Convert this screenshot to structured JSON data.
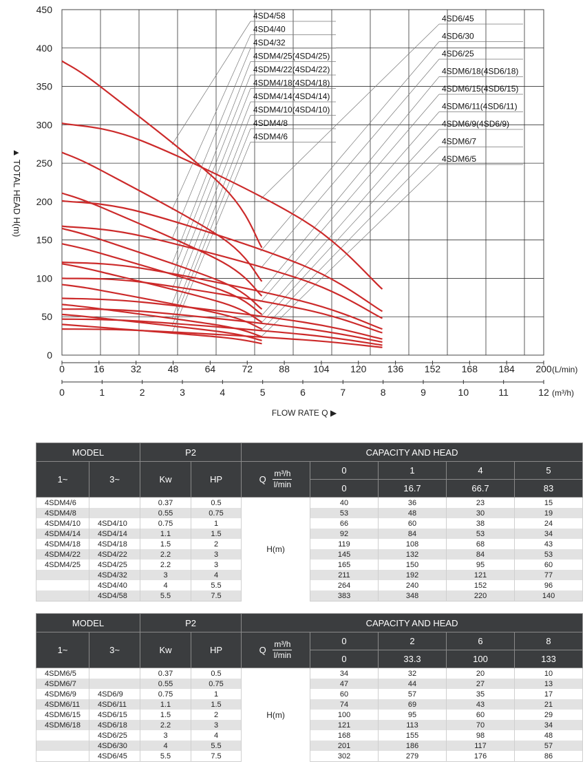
{
  "chart_data": {
    "type": "line",
    "ylabel": "▲ TOTAL HEAD H(m)",
    "xlabel": "FLOW RATE Q ▶",
    "x_unit_top": "(L/min)",
    "x_unit_bottom": "(m³/h)",
    "ylim": [
      0,
      450
    ],
    "xlim_lmin": [
      0,
      200
    ],
    "y_ticks": [
      0,
      50,
      100,
      150,
      200,
      250,
      300,
      350,
      400,
      450
    ],
    "x_ticks_lmin": [
      0,
      16,
      32,
      48,
      64,
      72,
      88,
      104,
      120,
      136,
      152,
      168,
      184,
      200
    ],
    "x_ticks_m3h": [
      0,
      1,
      2,
      3,
      4,
      5,
      6,
      7,
      8,
      9,
      10,
      11,
      12
    ],
    "grid": true,
    "line_color": "#cc2a2a",
    "series": [
      {
        "name": "4SDM4/6",
        "x": [
          0,
          16.7,
          66.7,
          83
        ],
        "y": [
          40,
          36,
          23,
          15
        ]
      },
      {
        "name": "4SDM4/8",
        "x": [
          0,
          16.7,
          66.7,
          83
        ],
        "y": [
          53,
          48,
          30,
          19
        ]
      },
      {
        "name": "4SDM4/10(4SD4/10)",
        "x": [
          0,
          16.7,
          66.7,
          83
        ],
        "y": [
          66,
          60,
          38,
          24
        ]
      },
      {
        "name": "4SDM4/14(4SD4/14)",
        "x": [
          0,
          16.7,
          66.7,
          83
        ],
        "y": [
          92,
          84,
          53,
          34
        ]
      },
      {
        "name": "4SDM4/18(4SD4/18)",
        "x": [
          0,
          16.7,
          66.7,
          83
        ],
        "y": [
          119,
          108,
          68,
          43
        ]
      },
      {
        "name": "4SDM4/22(4SD4/22)",
        "x": [
          0,
          16.7,
          66.7,
          83
        ],
        "y": [
          145,
          132,
          84,
          53
        ]
      },
      {
        "name": "4SDM4/25(4SD4/25)",
        "x": [
          0,
          16.7,
          66.7,
          83
        ],
        "y": [
          165,
          150,
          95,
          60
        ]
      },
      {
        "name": "4SD4/32",
        "x": [
          0,
          16.7,
          66.7,
          83
        ],
        "y": [
          211,
          192,
          121,
          77
        ]
      },
      {
        "name": "4SD4/40",
        "x": [
          0,
          16.7,
          66.7,
          83
        ],
        "y": [
          264,
          240,
          152,
          96
        ]
      },
      {
        "name": "4SD4/58",
        "x": [
          0,
          16.7,
          66.7,
          83
        ],
        "y": [
          383,
          348,
          220,
          140
        ]
      },
      {
        "name": "4SDM6/5",
        "x": [
          0,
          33.3,
          100,
          133
        ],
        "y": [
          34,
          32,
          20,
          10
        ]
      },
      {
        "name": "4SDM6/7",
        "x": [
          0,
          33.3,
          100,
          133
        ],
        "y": [
          47,
          44,
          27,
          13
        ]
      },
      {
        "name": "4SDM6/9(4SD6/9)",
        "x": [
          0,
          33.3,
          100,
          133
        ],
        "y": [
          60,
          57,
          35,
          17
        ]
      },
      {
        "name": "4SDM6/11(4SD6/11)",
        "x": [
          0,
          33.3,
          100,
          133
        ],
        "y": [
          74,
          69,
          43,
          21
        ]
      },
      {
        "name": "4SDM6/15(4SD6/15)",
        "x": [
          0,
          33.3,
          100,
          133
        ],
        "y": [
          100,
          95,
          60,
          29
        ]
      },
      {
        "name": "4SDM6/18(4SD6/18)",
        "x": [
          0,
          33.3,
          100,
          133
        ],
        "y": [
          121,
          113,
          70,
          34
        ]
      },
      {
        "name": "4SD6/25",
        "x": [
          0,
          33.3,
          100,
          133
        ],
        "y": [
          168,
          155,
          98,
          48
        ]
      },
      {
        "name": "4SD6/30",
        "x": [
          0,
          33.3,
          100,
          133
        ],
        "y": [
          201,
          186,
          117,
          57
        ]
      },
      {
        "name": "4SD6/45",
        "x": [
          0,
          33.3,
          100,
          133
        ],
        "y": [
          302,
          279,
          176,
          86
        ]
      }
    ]
  },
  "tables": [
    {
      "h_model": "MODEL",
      "h_p2": "P2",
      "h_cap": "CAPACITY AND HEAD",
      "h_1ph": "1~",
      "h_3ph": "3~",
      "h_kw": "Kw",
      "h_hp": "HP",
      "h_q": "Q",
      "h_unit_m3h": "m³/h",
      "h_unit_lmin": "l/min",
      "h_hm": "H(m)",
      "q_m3h": [
        "0",
        "1",
        "4",
        "5"
      ],
      "q_lmin": [
        "0",
        "16.7",
        "66.7",
        "83"
      ],
      "rows": [
        {
          "m1": "4SDM4/6",
          "m3": "",
          "kw": "0.37",
          "hp": "0.5",
          "h": [
            "40",
            "36",
            "23",
            "15"
          ]
        },
        {
          "m1": "4SDM4/8",
          "m3": "",
          "kw": "0.55",
          "hp": "0.75",
          "h": [
            "53",
            "48",
            "30",
            "19"
          ]
        },
        {
          "m1": "4SDM4/10",
          "m3": "4SD4/10",
          "kw": "0.75",
          "hp": "1",
          "h": [
            "66",
            "60",
            "38",
            "24"
          ]
        },
        {
          "m1": "4SDM4/14",
          "m3": "4SD4/14",
          "kw": "1.1",
          "hp": "1.5",
          "h": [
            "92",
            "84",
            "53",
            "34"
          ]
        },
        {
          "m1": "4SDM4/18",
          "m3": "4SD4/18",
          "kw": "1.5",
          "hp": "2",
          "h": [
            "119",
            "108",
            "68",
            "43"
          ]
        },
        {
          "m1": "4SDM4/22",
          "m3": "4SD4/22",
          "kw": "2.2",
          "hp": "3",
          "h": [
            "145",
            "132",
            "84",
            "53"
          ]
        },
        {
          "m1": "4SDM4/25",
          "m3": "4SD4/25",
          "kw": "2.2",
          "hp": "3",
          "h": [
            "165",
            "150",
            "95",
            "60"
          ]
        },
        {
          "m1": "",
          "m3": "4SD4/32",
          "kw": "3",
          "hp": "4",
          "h": [
            "211",
            "192",
            "121",
            "77"
          ]
        },
        {
          "m1": "",
          "m3": "4SD4/40",
          "kw": "4",
          "hp": "5.5",
          "h": [
            "264",
            "240",
            "152",
            "96"
          ]
        },
        {
          "m1": "",
          "m3": "4SD4/58",
          "kw": "5.5",
          "hp": "7.5",
          "h": [
            "383",
            "348",
            "220",
            "140"
          ]
        }
      ]
    },
    {
      "h_model": "MODEL",
      "h_p2": "P2",
      "h_cap": "CAPACITY AND HEAD",
      "h_1ph": "1~",
      "h_3ph": "3~",
      "h_kw": "Kw",
      "h_hp": "HP",
      "h_q": "Q",
      "h_unit_m3h": "m³/h",
      "h_unit_lmin": "l/min",
      "h_hm": "H(m)",
      "q_m3h": [
        "0",
        "2",
        "6",
        "8"
      ],
      "q_lmin": [
        "0",
        "33.3",
        "100",
        "133"
      ],
      "rows": [
        {
          "m1": "4SDM6/5",
          "m3": "",
          "kw": "0.37",
          "hp": "0.5",
          "h": [
            "34",
            "32",
            "20",
            "10"
          ]
        },
        {
          "m1": "4SDM6/7",
          "m3": "",
          "kw": "0.55",
          "hp": "0.75",
          "h": [
            "47",
            "44",
            "27",
            "13"
          ]
        },
        {
          "m1": "4SDM6/9",
          "m3": "4SD6/9",
          "kw": "0.75",
          "hp": "1",
          "h": [
            "60",
            "57",
            "35",
            "17"
          ]
        },
        {
          "m1": "4SDM6/11",
          "m3": "4SD6/11",
          "kw": "1.1",
          "hp": "1.5",
          "h": [
            "74",
            "69",
            "43",
            "21"
          ]
        },
        {
          "m1": "4SDM6/15",
          "m3": "4SD6/15",
          "kw": "1.5",
          "hp": "2",
          "h": [
            "100",
            "95",
            "60",
            "29"
          ]
        },
        {
          "m1": "4SDM6/18",
          "m3": "4SD6/18",
          "kw": "2.2",
          "hp": "3",
          "h": [
            "121",
            "113",
            "70",
            "34"
          ]
        },
        {
          "m1": "",
          "m3": "4SD6/25",
          "kw": "3",
          "hp": "4",
          "h": [
            "168",
            "155",
            "98",
            "48"
          ]
        },
        {
          "m1": "",
          "m3": "4SD6/30",
          "kw": "4",
          "hp": "5.5",
          "h": [
            "201",
            "186",
            "117",
            "57"
          ]
        },
        {
          "m1": "",
          "m3": "4SD6/45",
          "kw": "5.5",
          "hp": "7.5",
          "h": [
            "302",
            "279",
            "176",
            "86"
          ]
        }
      ]
    }
  ]
}
